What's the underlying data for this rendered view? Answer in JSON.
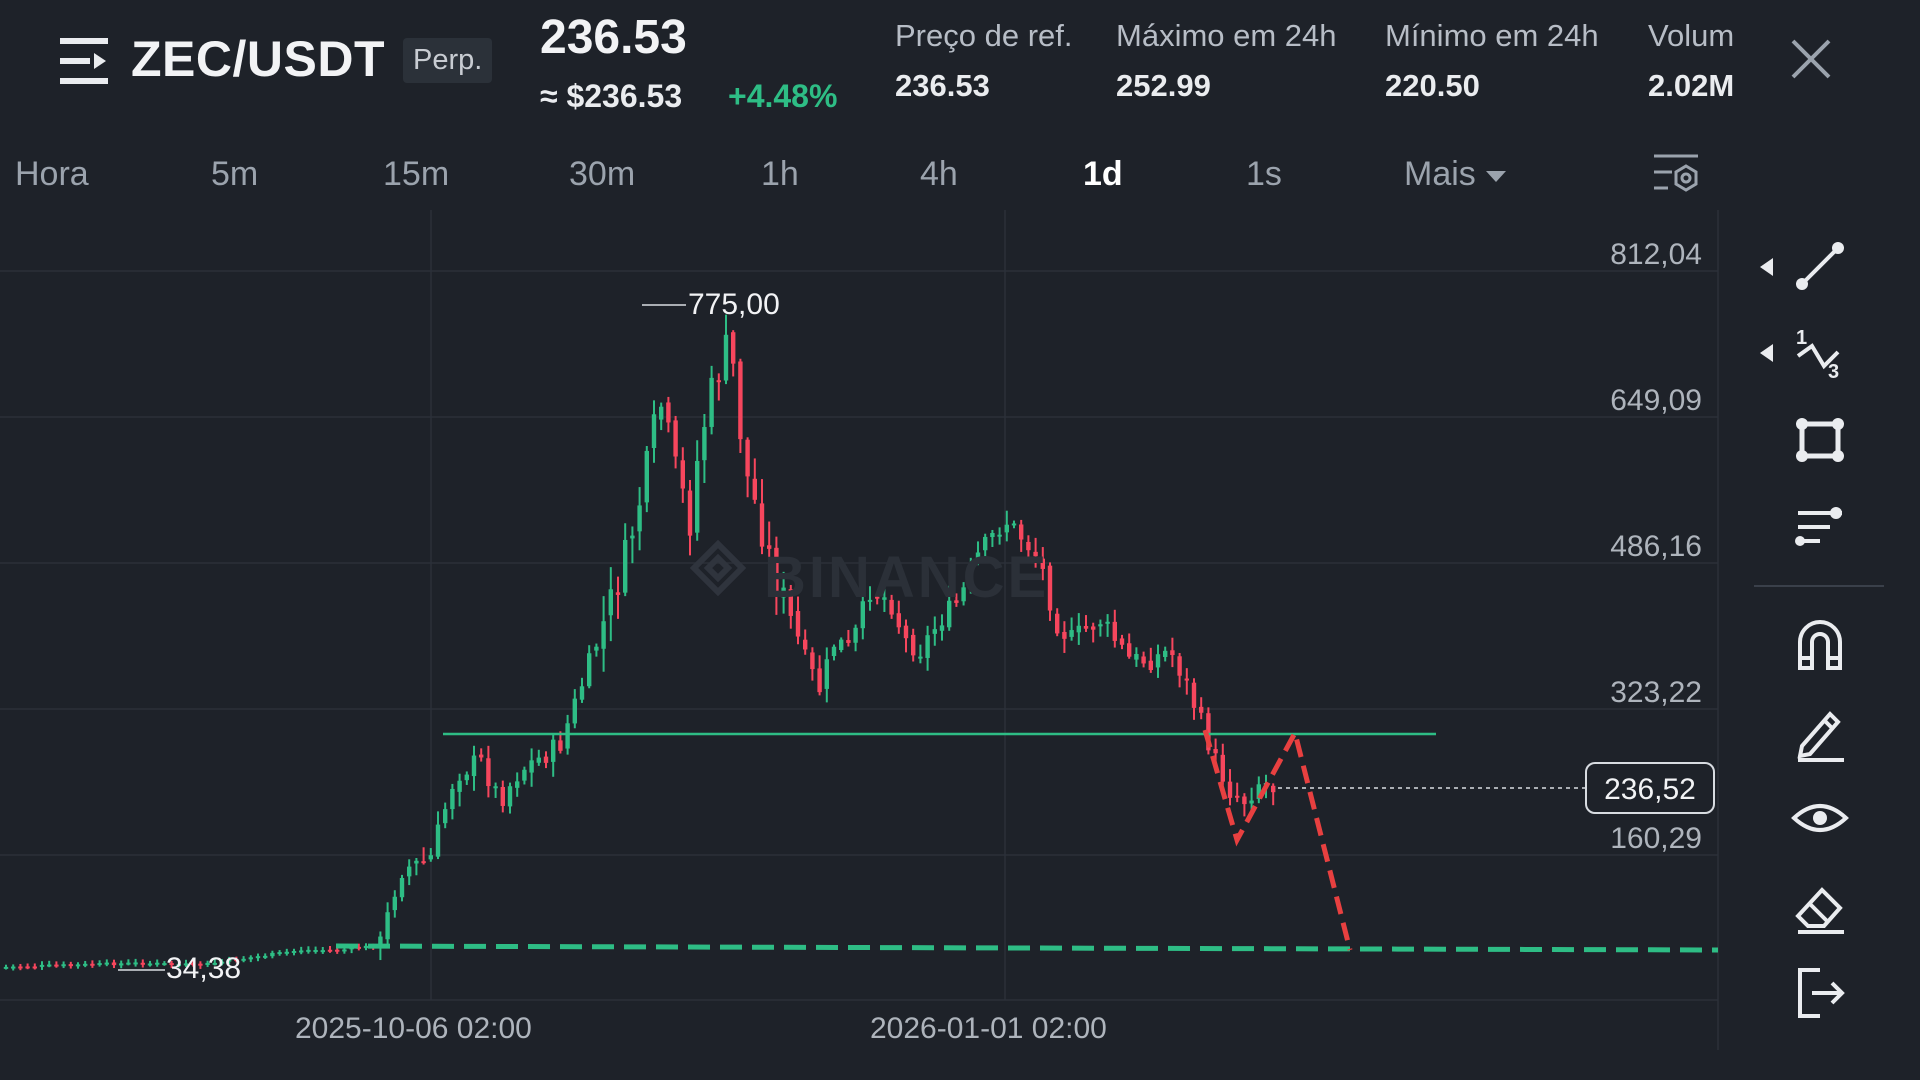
{
  "header": {
    "symbol": "ZEC/USDT",
    "contract_badge": "Perp.",
    "last_price": "236.53",
    "usd_price": "≈ $236.53",
    "change_pct": "+4.48%",
    "stats": [
      {
        "label": "Preço de ref.",
        "value": "236.53"
      },
      {
        "label": "Máximo em 24h",
        "value": "252.99"
      },
      {
        "label": "Mínimo em 24h",
        "value": "220.50"
      },
      {
        "label": "Volume",
        "value": "2.02M"
      }
    ]
  },
  "intervals": {
    "items": [
      "Hora",
      "5m",
      "15m",
      "30m",
      "1h",
      "4h",
      "1d",
      "1s"
    ],
    "active": "1d",
    "more_label": "Mais"
  },
  "chart": {
    "price_axis": [
      "812,04",
      "649,09",
      "486,16",
      "323,22",
      "160,29"
    ],
    "date_axis": [
      "2025-10-06 02:00",
      "2026-01-01 02:00"
    ],
    "current_price_tag": "236,52",
    "high_label": "775,00",
    "low_label": "34,38",
    "watermark": "BINANCE"
  },
  "colors": {
    "background": "#1e2229",
    "up": "#2ebd85",
    "down": "#f6465d",
    "grid": "#2b3039",
    "projection": "#e84040"
  },
  "toolbar": {
    "tools": [
      "trend-line-icon",
      "fibonacci-icon",
      "rectangle-icon",
      "indicator-settings-icon",
      "magnet-icon",
      "pencil-icon",
      "eye-icon",
      "eraser-icon",
      "exit-icon"
    ]
  },
  "chart_data": {
    "type": "candlestick",
    "symbol": "ZEC/USDT",
    "interval": "1d",
    "y_ticks": [
      812.04,
      649.09,
      486.16,
      323.22,
      160.29
    ],
    "x_ticks": [
      "2025-10-06 02:00",
      "2026-01-01 02:00"
    ],
    "grid": true,
    "price_range": [
      34.38,
      775.0
    ],
    "marked_high": 775.0,
    "marked_low": 34.38,
    "last_price": 236.52,
    "annotations": [
      {
        "type": "horizontal-line",
        "price": 295,
        "color": "#2ebd85"
      },
      {
        "type": "horizontal-dashed-line",
        "price": 65,
        "color": "#2ebd85"
      },
      {
        "type": "zigzag-projection",
        "prices": [
          295,
          180,
          295,
          65
        ],
        "color": "#e84040"
      }
    ]
  }
}
